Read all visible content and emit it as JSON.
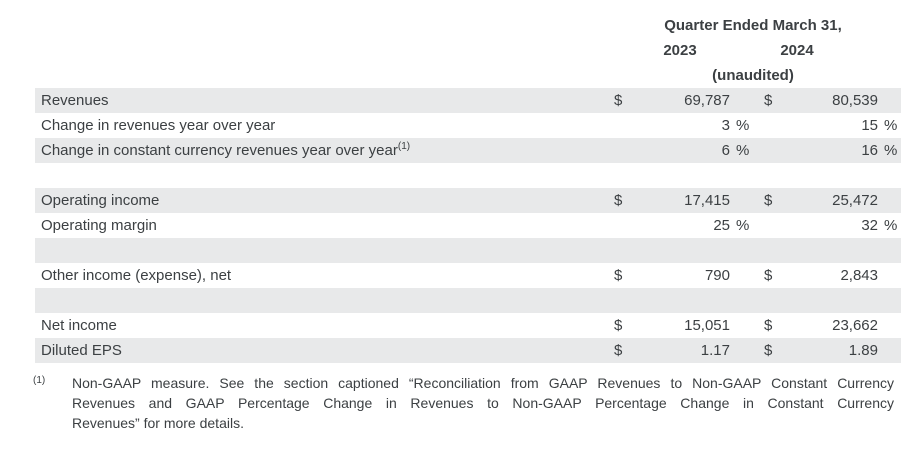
{
  "colors": {
    "row_shade": "#e8e9ea",
    "text": "#3c4043",
    "background": "#ffffff"
  },
  "header": {
    "period_title": "Quarter Ended March 31,",
    "col_2023": "2023",
    "col_2024": "2024",
    "note": "(unaudited)"
  },
  "table": {
    "rows": [
      {
        "label": "Revenues",
        "d1": "$",
        "v1": "69,787",
        "p1": "",
        "d2": "$",
        "v2": "80,539",
        "p2": ""
      },
      {
        "label": "Change in revenues year over year",
        "d1": "",
        "v1": "3",
        "p1": "%",
        "d2": "",
        "v2": "15",
        "p2": "%"
      },
      {
        "label": "Change in constant currency revenues year over year",
        "label_sup": "(1)",
        "d1": "",
        "v1": "6",
        "p1": "%",
        "d2": "",
        "v2": "16",
        "p2": "%"
      },
      {
        "spacer": true
      },
      {
        "label": "Operating income",
        "d1": "$",
        "v1": "17,415",
        "p1": "",
        "d2": "$",
        "v2": "25,472",
        "p2": ""
      },
      {
        "label": "Operating margin",
        "d1": "",
        "v1": "25",
        "p1": "%",
        "d2": "",
        "v2": "32",
        "p2": "%"
      },
      {
        "spacer": true
      },
      {
        "label": "Other income (expense), net",
        "d1": "$",
        "v1": "790",
        "p1": "",
        "d2": "$",
        "v2": "2,843",
        "p2": ""
      },
      {
        "spacer": true
      },
      {
        "label": "Net income",
        "d1": "$",
        "v1": "15,051",
        "p1": "",
        "d2": "$",
        "v2": "23,662",
        "p2": ""
      },
      {
        "label": "Diluted EPS",
        "d1": "$",
        "v1": "1.17",
        "p1": "",
        "d2": "$",
        "v2": "1.89",
        "p2": ""
      }
    ]
  },
  "footnote": {
    "marker": "(1)",
    "lines": [
      "Non-GAAP measure. See the section captioned “Reconciliation from GAAP Revenues to Non-GAAP Constant Currency",
      "Revenues and GAAP Percentage Change in Revenues to Non-GAAP Percentage Change in Constant Currency",
      "Revenues” for more details."
    ]
  }
}
